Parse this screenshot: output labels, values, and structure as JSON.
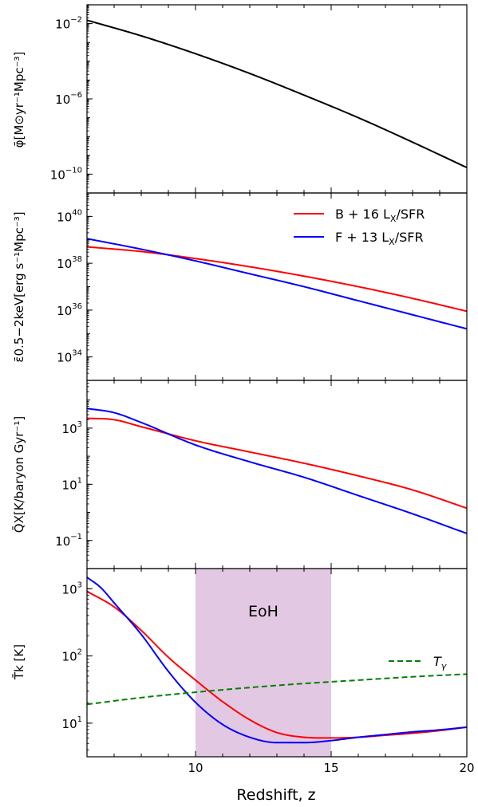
{
  "figure": {
    "xlabel": "Redshift, z",
    "x_ticks": [
      "10",
      "15",
      "20"
    ]
  },
  "chart_data": [
    {
      "type": "line",
      "panel": "phi",
      "ylabel": "φ̄[M⊙yr⁻¹Mpc⁻³]",
      "xlim": [
        6,
        20
      ],
      "ylim_log10": [
        -11,
        -1
      ],
      "yscale": "log",
      "y_ticks": [
        {
          "base": "10",
          "exp": "−2",
          "log": -2
        },
        {
          "base": "10",
          "exp": "−6",
          "log": -6
        },
        {
          "base": "10",
          "exp": "−10",
          "log": -10
        }
      ],
      "series": [
        {
          "color": "#000000",
          "x": [
            6,
            8,
            10,
            12,
            14,
            16,
            18,
            20
          ],
          "y_log10": [
            -1.82,
            -2.65,
            -3.6,
            -4.65,
            -5.8,
            -7.0,
            -8.3,
            -9.65
          ]
        }
      ]
    },
    {
      "type": "line",
      "panel": "epsilon",
      "ylabel": "ε̄0.5−2keV[erg s⁻¹Mpc⁻³]",
      "xlim": [
        6,
        20
      ],
      "ylim_log10": [
        33,
        41
      ],
      "yscale": "log",
      "y_ticks": [
        {
          "base": "10",
          "exp": "40",
          "log": 40
        },
        {
          "base": "10",
          "exp": "38",
          "log": 38
        },
        {
          "base": "10",
          "exp": "36",
          "log": 36
        },
        {
          "base": "10",
          "exp": "34",
          "log": 34
        }
      ],
      "legend": [
        {
          "label": "B + 16 L",
          "sub": "X",
          "suffix": "/SFR",
          "color": "#ff0000"
        },
        {
          "label": "F + 13 L",
          "sub": "X",
          "suffix": "/SFR",
          "color": "#0000ff"
        }
      ],
      "series": [
        {
          "name": "B + 16 LX/SFR",
          "color": "#ff0000",
          "x": [
            6,
            8,
            10,
            12,
            14,
            16,
            18,
            20
          ],
          "y_log10": [
            38.7,
            38.5,
            38.2,
            37.85,
            37.45,
            37.0,
            36.5,
            35.95
          ]
        },
        {
          "name": "F + 13 LX/SFR",
          "color": "#0000ff",
          "x": [
            6,
            8,
            10,
            12,
            14,
            16,
            18,
            20
          ],
          "y_log10": [
            39.05,
            38.6,
            38.1,
            37.55,
            37.0,
            36.4,
            35.8,
            35.2
          ]
        }
      ]
    },
    {
      "type": "line",
      "panel": "Qx",
      "ylabel": "Q̄X[K/baryon Gyr⁻¹]",
      "xlim": [
        6,
        20
      ],
      "ylim_log10": [
        -2,
        4.7
      ],
      "yscale": "log",
      "y_ticks": [
        {
          "base": "10",
          "exp": "3",
          "log": 3
        },
        {
          "base": "10",
          "exp": "1",
          "log": 1
        },
        {
          "base": "10",
          "exp": "−1",
          "log": -1
        }
      ],
      "series": [
        {
          "name": "B + 16 LX/SFR",
          "color": "#ff0000",
          "x": [
            6,
            7,
            8,
            10,
            12,
            14,
            16,
            18,
            20
          ],
          "y_log10": [
            3.35,
            3.3,
            3.05,
            2.55,
            2.15,
            1.75,
            1.3,
            0.8,
            0.15
          ]
        },
        {
          "name": "F + 13 LX/SFR",
          "color": "#0000ff",
          "x": [
            6,
            7,
            8,
            10,
            12,
            14,
            16,
            18,
            20
          ],
          "y_log10": [
            3.7,
            3.55,
            3.2,
            2.4,
            1.8,
            1.25,
            0.6,
            -0.05,
            -0.75
          ]
        }
      ]
    },
    {
      "type": "line",
      "panel": "Tk",
      "ylabel": "T̄k [K]",
      "xlim": [
        6,
        20
      ],
      "ylim_log10": [
        0.5,
        3.3
      ],
      "yscale": "log",
      "y_ticks": [
        {
          "base": "10",
          "exp": "3",
          "log": 3
        },
        {
          "base": "10",
          "exp": "2",
          "log": 2
        },
        {
          "base": "10",
          "exp": "1",
          "log": 1
        }
      ],
      "shaded_region": {
        "x": [
          10,
          15
        ],
        "label": "EoH",
        "color": "#e2c8e2"
      },
      "legend": [
        {
          "label": "T",
          "sub": "γ",
          "color": "#008000",
          "style": "dashed"
        }
      ],
      "series": [
        {
          "name": "red",
          "color": "#ff0000",
          "x": [
            6,
            7,
            8,
            9,
            10,
            11,
            12,
            13,
            14,
            15,
            16,
            17,
            18,
            19,
            20
          ],
          "y_log10": [
            2.96,
            2.73,
            2.38,
            1.98,
            1.64,
            1.32,
            1.05,
            0.86,
            0.79,
            0.78,
            0.79,
            0.82,
            0.85,
            0.89,
            0.94
          ]
        },
        {
          "name": "blue",
          "color": "#0000ff",
          "x": [
            6,
            6.5,
            7,
            8,
            9,
            10,
            11,
            12,
            13,
            14,
            15,
            16,
            17,
            18,
            19,
            20
          ],
          "y_log10": [
            3.17,
            3.02,
            2.79,
            2.32,
            1.77,
            1.31,
            0.98,
            0.79,
            0.71,
            0.71,
            0.74,
            0.79,
            0.83,
            0.87,
            0.9,
            0.94
          ]
        },
        {
          "name": "Tγ",
          "color": "#008000",
          "dashed": true,
          "x": [
            6,
            8,
            10,
            12,
            14,
            16,
            18,
            20
          ],
          "y_log10": [
            1.28,
            1.38,
            1.46,
            1.53,
            1.59,
            1.64,
            1.69,
            1.73
          ]
        }
      ]
    }
  ]
}
